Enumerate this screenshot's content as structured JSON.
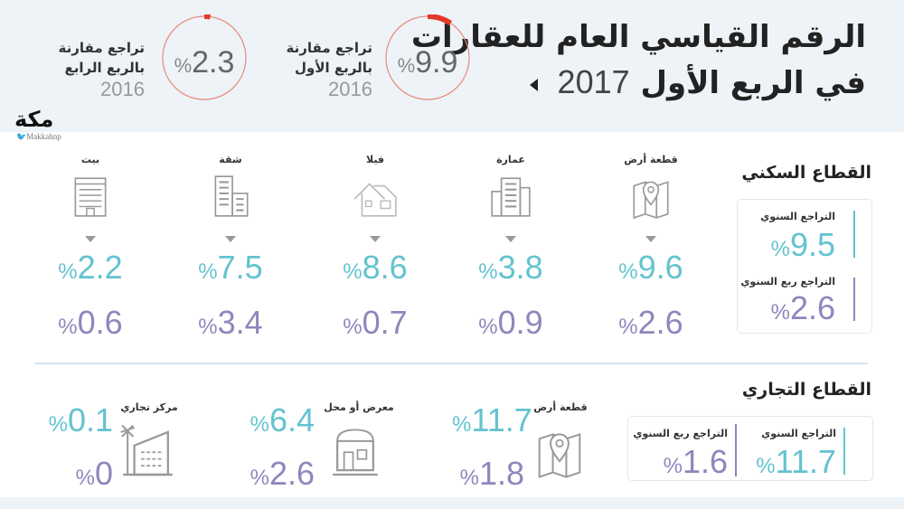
{
  "header": {
    "title_line1": "الرقم القياسي العام للعقارات",
    "title_line2": "في الربع الأول",
    "year": "2017",
    "rings": [
      {
        "value": "9.9",
        "pct": "%",
        "label1": "تراجع مقارنة",
        "label2": "بالربع الأول",
        "year": "2016",
        "fill_percent": 9.9
      },
      {
        "value": "2.3",
        "pct": "%",
        "label1": "تراجع مقارنة",
        "label2": "بالربع الرابع",
        "year": "2016",
        "fill_percent": 2.3
      }
    ]
  },
  "logo": {
    "text": "مكة",
    "handle": "Makkahnp"
  },
  "residential": {
    "title": "القطاع السكني",
    "annual_label": "التراجع السنوي",
    "annual": "9.5",
    "quarterly_label": "التراجع ربع السنوي",
    "quarterly": "2.6",
    "items": [
      {
        "label": "قطعة أرض",
        "icon": "map-pin-icon",
        "v1": "9.6",
        "v2": "2.6"
      },
      {
        "label": "عمارة",
        "icon": "building-icon",
        "v1": "3.8",
        "v2": "0.9"
      },
      {
        "label": "فيلا",
        "icon": "villa-icon",
        "v1": "8.6",
        "v2": "0.7"
      },
      {
        "label": "شقة",
        "icon": "apartment-icon",
        "v1": "7.5",
        "v2": "3.4"
      },
      {
        "label": "بيت",
        "icon": "house-icon",
        "v1": "2.2",
        "v2": "0.6"
      }
    ]
  },
  "commercial": {
    "title": "القطاع التجاري",
    "annual_label": "التراجع السنوي",
    "annual": "11.7",
    "quarterly_label": "التراجع ربع السنوي",
    "quarterly": "1.6",
    "items": [
      {
        "label": "قطعة أرض",
        "icon": "map-pin-icon",
        "v1": "11.7",
        "v2": "1.8"
      },
      {
        "label": "معرض أو محل",
        "icon": "shop-icon",
        "v1": "6.4",
        "v2": "2.6"
      },
      {
        "label": "مركز تجاري",
        "icon": "mall-icon",
        "v1": "0.1",
        "v2": "0"
      }
    ]
  },
  "pct": "%",
  "colors": {
    "teal": "#63c3cf",
    "purple": "#8d87bd",
    "ring": "#e05040"
  }
}
